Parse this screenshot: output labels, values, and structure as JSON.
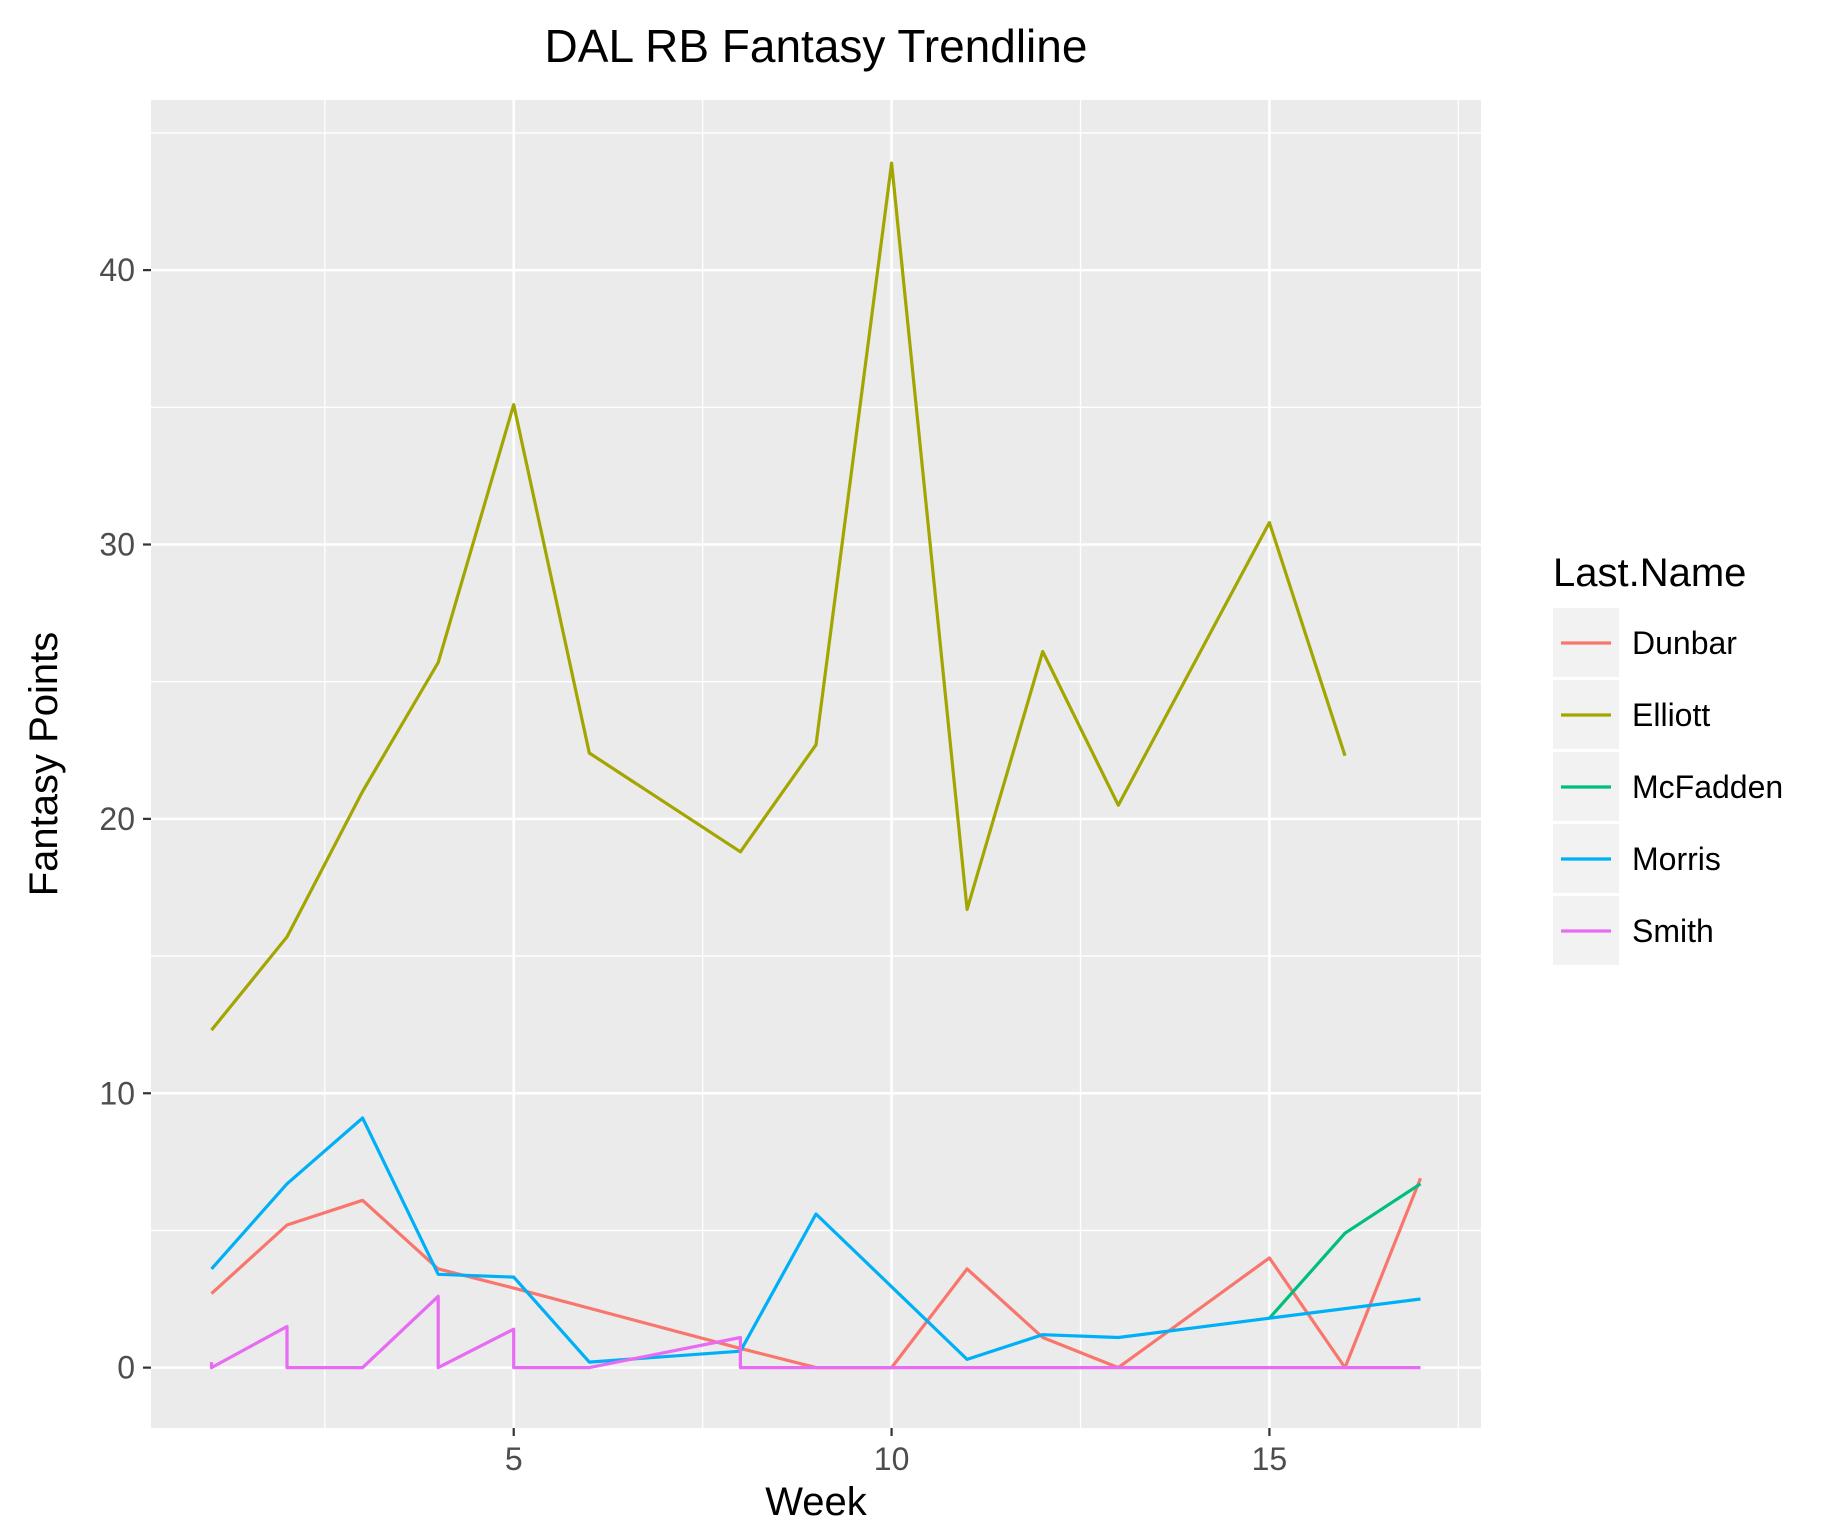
{
  "chart_data": {
    "type": "line",
    "title": "DAL RB Fantasy Trendline",
    "xlabel": "Week",
    "ylabel": "Fantasy Points",
    "xlim": [
      0.2,
      17.8
    ],
    "ylim": [
      -2.2,
      46.2
    ],
    "x_ticks": [
      5,
      10,
      15
    ],
    "x_minor_ticks": [
      2.5,
      7.5,
      12.5,
      17.5
    ],
    "y_ticks": [
      0,
      10,
      20,
      30,
      40
    ],
    "y_minor_ticks": [
      5,
      15,
      25,
      35,
      45
    ],
    "grid": true,
    "legend_title": "Last.Name",
    "legend_position": "right",
    "series": [
      {
        "name": "Dunbar",
        "color": "#F8766D",
        "points": [
          [
            1,
            2.7
          ],
          [
            2,
            5.2
          ],
          [
            3,
            6.1
          ],
          [
            4,
            3.6
          ],
          [
            5,
            2.9
          ],
          [
            8,
            0.7
          ],
          [
            9,
            0
          ],
          [
            10,
            0
          ],
          [
            11,
            3.6
          ],
          [
            12,
            1.1
          ],
          [
            13,
            0
          ],
          [
            15,
            4.0
          ],
          [
            16,
            0
          ],
          [
            17,
            6.9
          ]
        ]
      },
      {
        "name": "Elliott",
        "color": "#A3A500",
        "points": [
          [
            1,
            12.3
          ],
          [
            2,
            15.7
          ],
          [
            3,
            21.0
          ],
          [
            4,
            25.7
          ],
          [
            5,
            35.1
          ],
          [
            6,
            22.4
          ],
          [
            8,
            18.8
          ],
          [
            9,
            22.7
          ],
          [
            10,
            43.9
          ],
          [
            11,
            16.7
          ],
          [
            12,
            26.1
          ],
          [
            13,
            20.5
          ],
          [
            15,
            30.8
          ],
          [
            16,
            22.3
          ]
        ]
      },
      {
        "name": "McFadden",
        "color": "#00BF7D",
        "points": [
          [
            15,
            1.8
          ],
          [
            16,
            4.9
          ],
          [
            17,
            6.7
          ]
        ]
      },
      {
        "name": "Morris",
        "color": "#00B0F6",
        "points": [
          [
            1,
            3.6
          ],
          [
            2,
            6.7
          ],
          [
            3,
            9.1
          ],
          [
            4,
            3.4
          ],
          [
            5,
            3.3
          ],
          [
            6,
            0.2
          ],
          [
            8,
            0.6
          ],
          [
            9,
            5.6
          ],
          [
            11,
            0.3
          ],
          [
            12,
            1.2
          ],
          [
            13,
            1.1
          ],
          [
            15,
            1.8
          ],
          [
            17,
            2.5
          ]
        ]
      },
      {
        "name": "Smith",
        "color": "#E76BF3",
        "points": [
          [
            1,
            0.2
          ],
          [
            1,
            0
          ],
          [
            2,
            1.5
          ],
          [
            2,
            0
          ],
          [
            3,
            0
          ],
          [
            4,
            2.6
          ],
          [
            4,
            0
          ],
          [
            5,
            1.4
          ],
          [
            5,
            0
          ],
          [
            6,
            0
          ],
          [
            8,
            1.1
          ],
          [
            8,
            0
          ],
          [
            9,
            0
          ],
          [
            10,
            0
          ],
          [
            11,
            0
          ],
          [
            12,
            0
          ],
          [
            13,
            0
          ],
          [
            15,
            0
          ],
          [
            17,
            0
          ]
        ]
      }
    ]
  }
}
